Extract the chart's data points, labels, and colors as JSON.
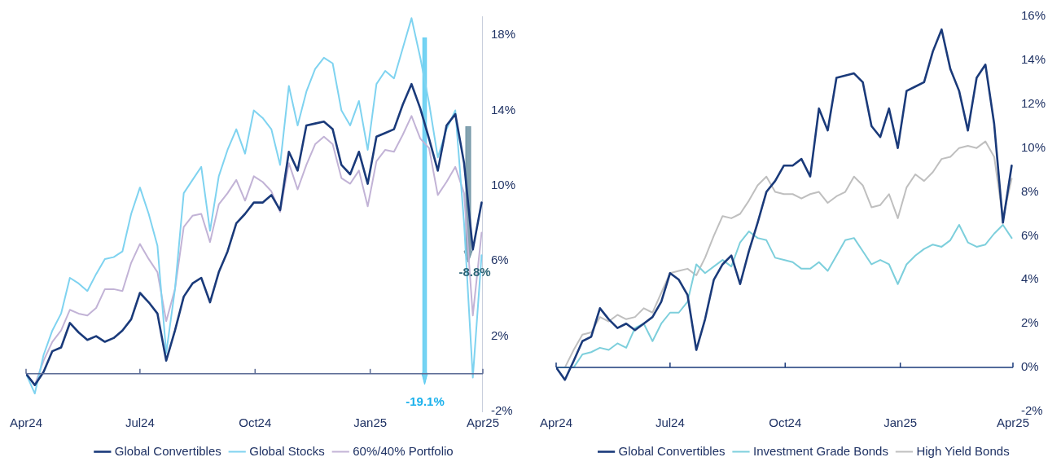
{
  "chart_data": [
    {
      "type": "line",
      "legend": "bottom",
      "x": [
        "2024-04-01",
        "2024-04-08",
        "2024-04-15",
        "2024-04-22",
        "2024-04-29",
        "2024-05-06",
        "2024-05-13",
        "2024-05-20",
        "2024-05-27",
        "2024-06-03",
        "2024-06-10",
        "2024-06-17",
        "2024-06-24",
        "2024-07-01",
        "2024-07-08",
        "2024-07-15",
        "2024-07-22",
        "2024-07-29",
        "2024-08-05",
        "2024-08-12",
        "2024-08-19",
        "2024-08-26",
        "2024-09-02",
        "2024-09-09",
        "2024-09-16",
        "2024-09-23",
        "2024-09-30",
        "2024-10-07",
        "2024-10-14",
        "2024-10-21",
        "2024-10-28",
        "2024-11-04",
        "2024-11-11",
        "2024-11-18",
        "2024-11-25",
        "2024-12-02",
        "2024-12-09",
        "2024-12-16",
        "2024-12-23",
        "2024-12-30",
        "2025-01-06",
        "2025-01-13",
        "2025-01-20",
        "2025-01-27",
        "2025-02-03",
        "2025-02-10",
        "2025-02-17",
        "2025-02-24",
        "2025-03-03",
        "2025-03-10",
        "2025-03-17",
        "2025-03-24",
        "2025-03-31"
      ],
      "xlim": [
        "2024-04-01",
        "2025-04-01"
      ],
      "xticks": [
        {
          "value": "2024-04-01",
          "label": "Apr24"
        },
        {
          "value": "2024-07-01",
          "label": "Jul24"
        },
        {
          "value": "2024-10-01",
          "label": "Oct24"
        },
        {
          "value": "2025-01-01",
          "label": "Jan25"
        },
        {
          "value": "2025-04-01",
          "label": "Apr25"
        }
      ],
      "ylim": [
        -2,
        19
      ],
      "yticks": [
        {
          "value": -2,
          "label": "-2%"
        },
        {
          "value": 2,
          "label": "2%"
        },
        {
          "value": 6,
          "label": "6%"
        },
        {
          "value": 10,
          "label": "10%"
        },
        {
          "value": 14,
          "label": "14%"
        },
        {
          "value": 18,
          "label": "18%"
        }
      ],
      "ref_lines": [
        {
          "axis": "y",
          "value": 0,
          "color": "#5b6b95"
        }
      ],
      "annotations": [
        "-19.1%",
        "-8.8%"
      ],
      "series": [
        {
          "name": "Global Convertibles",
          "color": "#1a3a7a",
          "values": [
            0,
            -0.6,
            0.1,
            1.2,
            1.4,
            2.7,
            2.2,
            1.8,
            2.0,
            1.7,
            1.9,
            2.3,
            2.9,
            4.3,
            3.8,
            3.2,
            0.7,
            2.3,
            4.1,
            4.8,
            5.1,
            3.8,
            5.4,
            6.5,
            8.0,
            8.5,
            9.1,
            9.1,
            9.5,
            8.7,
            11.8,
            10.8,
            13.2,
            13.3,
            13.4,
            13.0,
            11.1,
            10.6,
            11.8,
            10.1,
            12.6,
            12.8,
            13.0,
            14.3,
            15.4,
            14.1,
            12.5,
            10.8,
            13.2,
            13.8,
            11.2,
            6.6,
            9.1
          ]
        },
        {
          "name": "Global Stocks",
          "color": "#7fd3f0",
          "values": [
            0,
            -1.05,
            1.0,
            2.3,
            3.2,
            5.1,
            4.8,
            4.4,
            5.3,
            6.1,
            6.2,
            6.5,
            8.5,
            9.9,
            8.5,
            6.8,
            1.1,
            4.5,
            9.6,
            10.3,
            11.0,
            7.6,
            10.5,
            11.9,
            13.0,
            11.7,
            14.0,
            13.6,
            13.0,
            11.1,
            15.3,
            13.2,
            15.0,
            16.2,
            16.8,
            16.5,
            14.0,
            13.2,
            14.5,
            11.9,
            15.4,
            16.1,
            15.7,
            17.3,
            18.9,
            16.8,
            14.4,
            11.5,
            13.0,
            14.0,
            8.0,
            -0.2,
            6.3
          ]
        },
        {
          "name": "60%/40% Portfolio",
          "color": "#c2b3d6",
          "values": [
            0,
            -0.6,
            0.7,
            1.7,
            2.3,
            3.4,
            3.2,
            3.1,
            3.5,
            4.5,
            4.5,
            4.4,
            5.9,
            6.9,
            6.1,
            5.4,
            2.8,
            4.5,
            7.8,
            8.4,
            8.5,
            7.0,
            9.0,
            9.6,
            10.3,
            9.2,
            10.5,
            10.2,
            9.7,
            8.6,
            11.2,
            9.8,
            11.1,
            12.2,
            12.6,
            12.2,
            10.4,
            10.1,
            10.8,
            8.9,
            11.3,
            11.9,
            11.8,
            12.7,
            13.7,
            12.5,
            12.0,
            9.5,
            10.2,
            11.0,
            9.6,
            3.1,
            7.5
          ]
        }
      ]
    },
    {
      "type": "line",
      "legend": "bottom",
      "x": [
        "2024-04-01",
        "2024-04-08",
        "2024-04-15",
        "2024-04-22",
        "2024-04-29",
        "2024-05-06",
        "2024-05-13",
        "2024-05-20",
        "2024-05-27",
        "2024-06-03",
        "2024-06-10",
        "2024-06-17",
        "2024-06-24",
        "2024-07-01",
        "2024-07-08",
        "2024-07-15",
        "2024-07-22",
        "2024-07-29",
        "2024-08-05",
        "2024-08-12",
        "2024-08-19",
        "2024-08-26",
        "2024-09-02",
        "2024-09-09",
        "2024-09-16",
        "2024-09-23",
        "2024-09-30",
        "2024-10-07",
        "2024-10-14",
        "2024-10-21",
        "2024-10-28",
        "2024-11-04",
        "2024-11-11",
        "2024-11-18",
        "2024-11-25",
        "2024-12-02",
        "2024-12-09",
        "2024-12-16",
        "2024-12-23",
        "2024-12-30",
        "2025-01-06",
        "2025-01-13",
        "2025-01-20",
        "2025-01-27",
        "2025-02-03",
        "2025-02-10",
        "2025-02-17",
        "2025-02-24",
        "2025-03-03",
        "2025-03-10",
        "2025-03-17",
        "2025-03-24",
        "2025-03-31"
      ],
      "xlim": [
        "2024-04-01",
        "2025-04-01"
      ],
      "xticks": [
        {
          "value": "2024-04-01",
          "label": "Apr24"
        },
        {
          "value": "2024-07-01",
          "label": "Jul24"
        },
        {
          "value": "2024-10-01",
          "label": "Oct24"
        },
        {
          "value": "2025-01-01",
          "label": "Jan25"
        },
        {
          "value": "2025-04-01",
          "label": "Apr25"
        }
      ],
      "ylim": [
        -2,
        16
      ],
      "yticks": [
        {
          "value": -2,
          "label": "-2%"
        },
        {
          "value": 0,
          "label": "0%"
        },
        {
          "value": 2,
          "label": "2%"
        },
        {
          "value": 4,
          "label": "4%"
        },
        {
          "value": 6,
          "label": "6%"
        },
        {
          "value": 8,
          "label": "8%"
        },
        {
          "value": 10,
          "label": "10%"
        },
        {
          "value": 12,
          "label": "12%"
        },
        {
          "value": 14,
          "label": "14%"
        },
        {
          "value": 16,
          "label": "16%"
        }
      ],
      "ref_lines": [
        {
          "axis": "y",
          "value": 0,
          "color": "#1a3a7a"
        }
      ],
      "series": [
        {
          "name": "Global Convertibles",
          "color": "#1a3a7a",
          "values": [
            0,
            -0.56,
            0.3,
            1.2,
            1.4,
            2.7,
            2.2,
            1.8,
            2.0,
            1.7,
            2.0,
            2.3,
            3.0,
            4.3,
            4.0,
            3.3,
            0.8,
            2.2,
            4.0,
            4.7,
            5.1,
            3.8,
            5.3,
            6.6,
            8.0,
            8.5,
            9.2,
            9.2,
            9.5,
            8.7,
            11.8,
            10.8,
            13.2,
            13.3,
            13.4,
            13.0,
            11.0,
            10.5,
            11.8,
            10.0,
            12.6,
            12.8,
            13.0,
            14.4,
            15.4,
            13.6,
            12.6,
            10.8,
            13.2,
            13.8,
            11.1,
            6.6,
            9.2
          ]
        },
        {
          "name": "Investment Grade Bonds",
          "color": "#7dcfdc",
          "values": [
            0,
            0,
            0,
            0.6,
            0.7,
            0.9,
            0.8,
            1.1,
            0.9,
            1.8,
            2.0,
            1.2,
            2.0,
            2.5,
            2.5,
            3.0,
            4.7,
            4.3,
            4.6,
            4.9,
            4.6,
            5.7,
            6.2,
            5.9,
            5.8,
            5.0,
            4.9,
            4.8,
            4.5,
            4.5,
            4.8,
            4.4,
            5.1,
            5.8,
            5.9,
            5.3,
            4.7,
            4.9,
            4.7,
            3.8,
            4.7,
            5.1,
            5.4,
            5.6,
            5.5,
            5.8,
            6.5,
            5.7,
            5.5,
            5.6,
            6.1,
            6.5,
            5.9
          ]
        },
        {
          "name": "High Yield Bonds",
          "color": "#bfbfbf",
          "values": [
            0,
            0,
            0.8,
            1.5,
            1.6,
            2.3,
            2.1,
            2.4,
            2.2,
            2.3,
            2.7,
            2.5,
            3.4,
            4.3,
            4.4,
            4.5,
            4.2,
            5.0,
            6.0,
            6.9,
            6.8,
            7.0,
            7.6,
            8.3,
            8.7,
            8.0,
            7.9,
            7.9,
            7.7,
            7.9,
            8.0,
            7.5,
            7.8,
            8.0,
            8.7,
            8.3,
            7.3,
            7.4,
            7.9,
            6.8,
            8.2,
            8.8,
            8.5,
            8.9,
            9.5,
            9.6,
            10.0,
            10.1,
            10.0,
            10.3,
            9.6,
            6.8,
            8.6
          ]
        }
      ]
    }
  ]
}
